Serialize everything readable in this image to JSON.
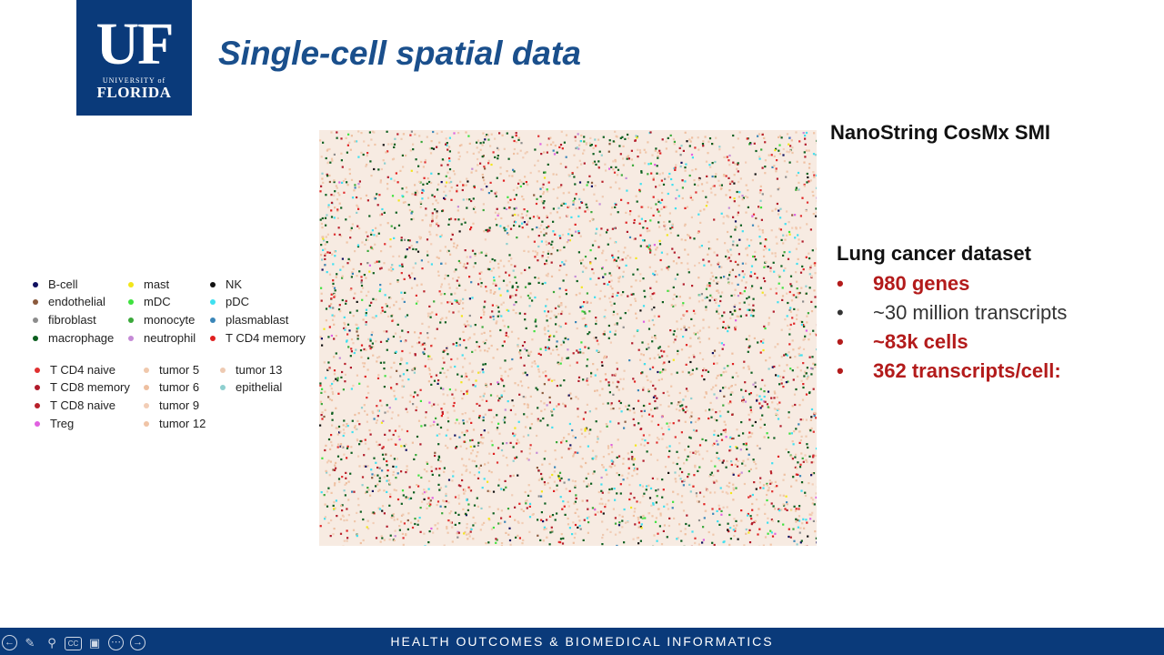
{
  "logo": {
    "mark": "UF",
    "line1": "UNIVERSITY of",
    "line2": "FLORIDA"
  },
  "slide": {
    "title": "Single-cell spatial data"
  },
  "legend": {
    "items": [
      {
        "label": "B-cell",
        "color": "#101060"
      },
      {
        "label": "endothelial",
        "color": "#8b5a3c"
      },
      {
        "label": "fibroblast",
        "color": "#8c8c8c"
      },
      {
        "label": "macrophage",
        "color": "#0b5e1e"
      },
      {
        "label": "mast",
        "color": "#f2e61a"
      },
      {
        "label": "mDC",
        "color": "#3ee23e"
      },
      {
        "label": "monocyte",
        "color": "#3aa83a"
      },
      {
        "label": "neutrophil",
        "color": "#c58ad6"
      },
      {
        "label": "NK",
        "color": "#111111"
      },
      {
        "label": "pDC",
        "color": "#3fe0f0"
      },
      {
        "label": "plasmablast",
        "color": "#3a86b8"
      },
      {
        "label": "T CD4 memory",
        "color": "#e02020"
      },
      {
        "label": "T CD4 naive",
        "color": "#e03030"
      },
      {
        "label": "T CD8 memory",
        "color": "#b01a2a"
      },
      {
        "label": "T CD8 naive",
        "color": "#b8202a"
      },
      {
        "label": "Treg",
        "color": "#e060e0"
      },
      {
        "label": "tumor 5",
        "color": "#f0c8ac"
      },
      {
        "label": "tumor 6",
        "color": "#eebfa0"
      },
      {
        "label": "tumor 9",
        "color": "#f2cdb6"
      },
      {
        "label": "tumor 12",
        "color": "#f0c4a6"
      },
      {
        "label": "tumor 13",
        "color": "#eecab2"
      },
      {
        "label": "epithelial",
        "color": "#8ecfcf"
      }
    ]
  },
  "right": {
    "platform": "NanoString CosMx SMI",
    "dataset_title": "Lung cancer dataset",
    "bullets": [
      {
        "text": "980 genes",
        "style": "red"
      },
      {
        "text": "~30 million transcripts",
        "style": "gray"
      },
      {
        "text": "~83k cells",
        "style": "red"
      },
      {
        "text": "362 transcripts/cell:",
        "style": "red"
      }
    ],
    "bullet_glyph": "•"
  },
  "footer": {
    "text": "HEALTH OUTCOMES & BIOMEDICAL INFORMATICS"
  },
  "toolbar": {
    "icons": [
      "arrow-left-icon",
      "pen-icon",
      "zoom-icon",
      "captions-icon",
      "video-icon",
      "more-icon",
      "arrow-right-icon"
    ],
    "captions_label": "CC"
  }
}
